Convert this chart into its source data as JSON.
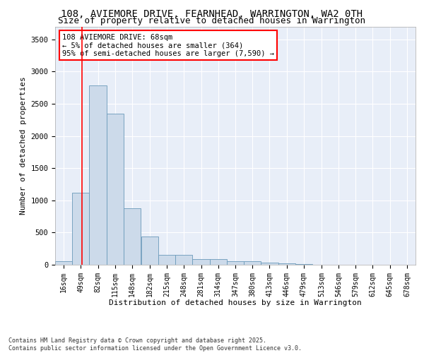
{
  "title1": "108, AVIEMORE DRIVE, FEARNHEAD, WARRINGTON, WA2 0TH",
  "title2": "Size of property relative to detached houses in Warrington",
  "xlabel": "Distribution of detached houses by size in Warrington",
  "ylabel": "Number of detached properties",
  "bin_edges": [
    16,
    49,
    82,
    115,
    148,
    182,
    215,
    248,
    281,
    314,
    347,
    380,
    413,
    446,
    479,
    513,
    546,
    579,
    612,
    645,
    678
  ],
  "bar_heights": [
    50,
    1120,
    2780,
    2350,
    880,
    440,
    155,
    155,
    90,
    85,
    50,
    50,
    30,
    20,
    10,
    5,
    5,
    5,
    5,
    5
  ],
  "bar_color": "#ccdaea",
  "bar_edge_color": "#6a9aba",
  "bg_color": "#e8eef8",
  "grid_color": "#ffffff",
  "red_line_x": 68,
  "annotation_line1": "108 AVIEMORE DRIVE: 68sqm",
  "annotation_line2": "← 5% of detached houses are smaller (364)",
  "annotation_line3": "95% of semi-detached houses are larger (7,590) →",
  "ylim": [
    0,
    3700
  ],
  "yticks": [
    0,
    500,
    1000,
    1500,
    2000,
    2500,
    3000,
    3500
  ],
  "footer1": "Contains HM Land Registry data © Crown copyright and database right 2025.",
  "footer2": "Contains public sector information licensed under the Open Government Licence v3.0.",
  "title_fontsize": 10,
  "subtitle_fontsize": 9,
  "axis_label_fontsize": 8,
  "tick_fontsize": 7,
  "annotation_fontsize": 7.5,
  "footer_fontsize": 6
}
